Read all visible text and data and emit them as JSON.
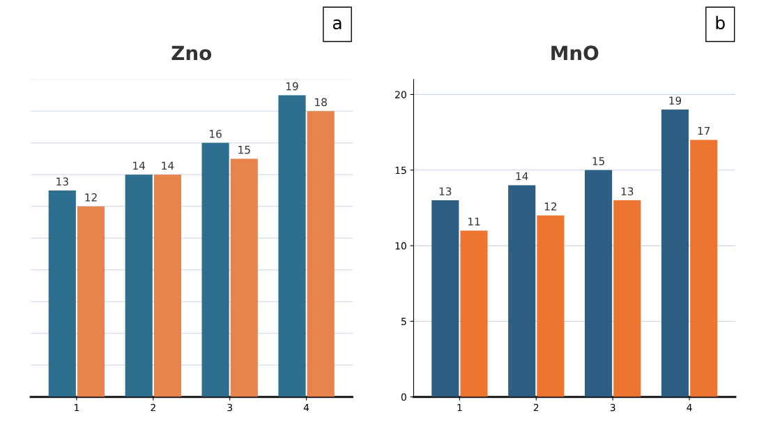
{
  "chart_data": [
    {
      "type": "bar",
      "title": "Zno",
      "categories": [
        "1",
        "2",
        "3",
        "4"
      ],
      "series": [
        {
          "color": "#2e6e8e",
          "values": [
            13,
            14,
            16,
            19
          ]
        },
        {
          "color": "#e8834e",
          "values": [
            12,
            14,
            15,
            18
          ]
        }
      ],
      "ylim": [
        0,
        20
      ],
      "yticks": [
        {
          "value": 0,
          "label": null
        },
        {
          "value": 2,
          "label": null
        },
        {
          "value": 4,
          "label": null
        },
        {
          "value": 6,
          "label": null
        },
        {
          "value": 8,
          "label": null
        },
        {
          "value": 10,
          "label": null
        },
        {
          "value": 12,
          "label": null
        },
        {
          "value": 14,
          "label": null
        },
        {
          "value": 16,
          "label": null
        },
        {
          "value": 18,
          "label": null
        },
        {
          "value": 20,
          "label": null
        }
      ],
      "tick_labels": "x",
      "grid": "y",
      "data_labels": true,
      "annotations": [
        "a"
      ]
    },
    {
      "type": "bar",
      "title": "MnO",
      "categories": [
        "1",
        "2",
        "3",
        "4"
      ],
      "series": [
        {
          "color": "#2d5f85",
          "values": [
            13,
            14,
            15,
            19
          ]
        },
        {
          "color": "#ee7530",
          "values": [
            11,
            12,
            13,
            17
          ]
        }
      ],
      "ylim": [
        0,
        21
      ],
      "yticks": [
        0,
        5,
        10,
        15,
        20
      ],
      "grid": "y",
      "data_labels": true,
      "annotations": [
        "b"
      ]
    }
  ]
}
